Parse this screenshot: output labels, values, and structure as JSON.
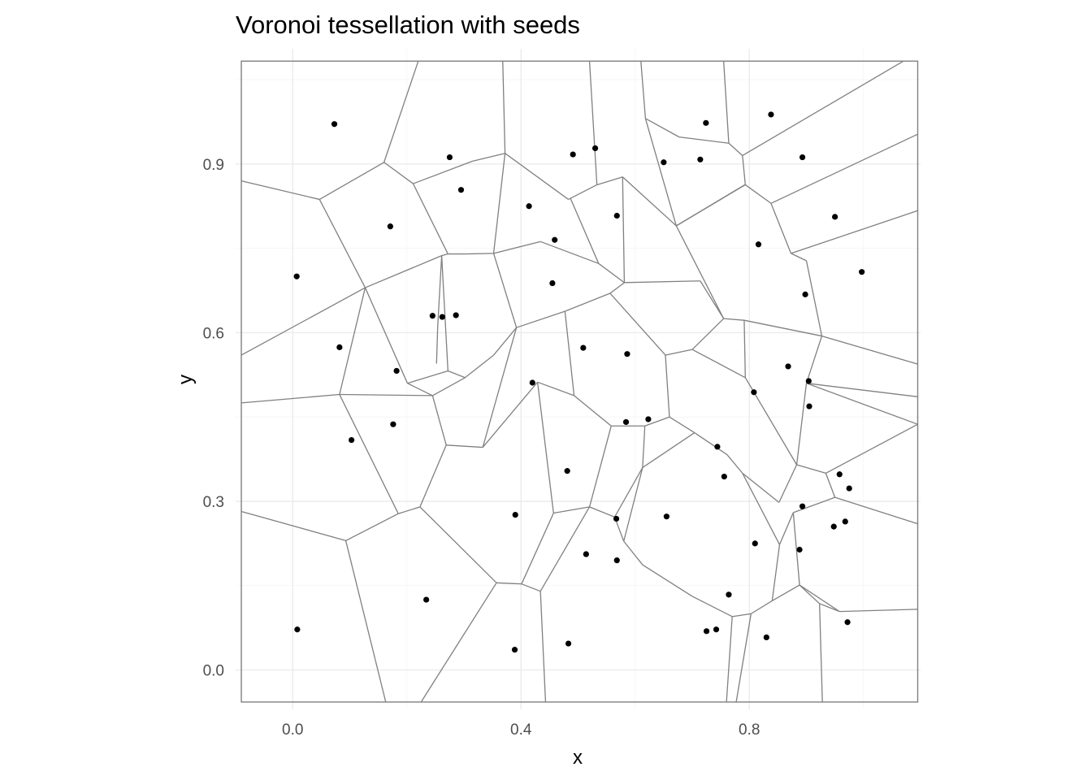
{
  "chart_data": {
    "type": "scatter",
    "title": "Voronoi tessellation with seeds",
    "xlabel": "x",
    "ylabel": "y",
    "xlim": [
      -0.1,
      1.1
    ],
    "ylim": [
      -0.07,
      1.105
    ],
    "grid": true,
    "x_ticks": [
      {
        "value": 0.0,
        "label": "0.0"
      },
      {
        "value": 0.4,
        "label": "0.4"
      },
      {
        "value": 0.8,
        "label": "0.8"
      }
    ],
    "y_ticks": [
      {
        "value": 0.0,
        "label": "0.0"
      },
      {
        "value": 0.3,
        "label": "0.3"
      },
      {
        "value": 0.6,
        "label": "0.6"
      },
      {
        "value": 0.9,
        "label": "0.9"
      }
    ],
    "bounding_box": {
      "xmin": -0.09,
      "xmax": 1.095,
      "ymin": -0.057,
      "ymax": 1.083
    },
    "seeds": [
      [
        0.073,
        0.971
      ],
      [
        0.007,
        0.7
      ],
      [
        0.171,
        0.789
      ],
      [
        0.275,
        0.912
      ],
      [
        0.295,
        0.854
      ],
      [
        0.414,
        0.825
      ],
      [
        0.491,
        0.917
      ],
      [
        0.53,
        0.928
      ],
      [
        0.65,
        0.903
      ],
      [
        0.724,
        0.973
      ],
      [
        0.838,
        0.988
      ],
      [
        0.893,
        0.912
      ],
      [
        0.714,
        0.908
      ],
      [
        0.568,
        0.808
      ],
      [
        0.459,
        0.765
      ],
      [
        0.455,
        0.688
      ],
      [
        0.245,
        0.63
      ],
      [
        0.262,
        0.628
      ],
      [
        0.286,
        0.631
      ],
      [
        0.082,
        0.574
      ],
      [
        0.182,
        0.532
      ],
      [
        0.176,
        0.437
      ],
      [
        0.103,
        0.409
      ],
      [
        0.42,
        0.511
      ],
      [
        0.509,
        0.573
      ],
      [
        0.586,
        0.562
      ],
      [
        0.584,
        0.441
      ],
      [
        0.623,
        0.446
      ],
      [
        0.481,
        0.354
      ],
      [
        0.39,
        0.276
      ],
      [
        0.234,
        0.125
      ],
      [
        0.008,
        0.072
      ],
      [
        0.389,
        0.036
      ],
      [
        0.483,
        0.047
      ],
      [
        0.514,
        0.206
      ],
      [
        0.567,
        0.269
      ],
      [
        0.568,
        0.195
      ],
      [
        0.655,
        0.273
      ],
      [
        0.744,
        0.397
      ],
      [
        0.756,
        0.344
      ],
      [
        0.808,
        0.494
      ],
      [
        0.868,
        0.54
      ],
      [
        0.904,
        0.514
      ],
      [
        0.905,
        0.469
      ],
      [
        0.898,
        0.668
      ],
      [
        0.816,
        0.757
      ],
      [
        0.95,
        0.806
      ],
      [
        0.997,
        0.708
      ],
      [
        0.958,
        0.348
      ],
      [
        0.975,
        0.323
      ],
      [
        0.893,
        0.291
      ],
      [
        0.968,
        0.264
      ],
      [
        0.948,
        0.255
      ],
      [
        0.888,
        0.214
      ],
      [
        0.81,
        0.225
      ],
      [
        0.764,
        0.134
      ],
      [
        0.725,
        0.069
      ],
      [
        0.742,
        0.072
      ],
      [
        0.83,
        0.058
      ],
      [
        0.972,
        0.085
      ]
    ],
    "edges": [
      [
        -0.09,
        0.87,
        0.047,
        0.837
      ],
      [
        0.047,
        0.837,
        0.16,
        0.903
      ],
      [
        0.16,
        0.903,
        0.211,
        0.865
      ],
      [
        0.211,
        0.865,
        0.315,
        0.905
      ],
      [
        0.315,
        0.905,
        0.372,
        0.919
      ],
      [
        0.16,
        0.903,
        0.22,
        1.083
      ],
      [
        0.372,
        0.919,
        0.368,
        1.083
      ],
      [
        0.211,
        0.865,
        0.272,
        0.74
      ],
      [
        0.047,
        0.837,
        0.127,
        0.68
      ],
      [
        0.127,
        0.68,
        0.261,
        0.737
      ],
      [
        0.261,
        0.737,
        0.272,
        0.74
      ],
      [
        0.272,
        0.74,
        0.302,
        0.74
      ],
      [
        0.302,
        0.74,
        0.352,
        0.741
      ],
      [
        0.352,
        0.741,
        0.372,
        0.919
      ],
      [
        0.372,
        0.919,
        0.483,
        0.837
      ],
      [
        0.483,
        0.837,
        0.533,
        0.863
      ],
      [
        0.533,
        0.863,
        0.578,
        0.877
      ],
      [
        0.578,
        0.877,
        0.672,
        0.79
      ],
      [
        0.672,
        0.79,
        0.618,
        0.981
      ],
      [
        0.618,
        0.981,
        0.61,
        1.083
      ],
      [
        0.618,
        0.981,
        0.677,
        0.948
      ],
      [
        0.677,
        0.948,
        0.764,
        0.937
      ],
      [
        0.764,
        0.937,
        0.788,
        0.915
      ],
      [
        0.764,
        0.937,
        0.755,
        1.083
      ],
      [
        0.788,
        0.915,
        1.07,
        1.083
      ],
      [
        0.788,
        0.915,
        0.793,
        0.863
      ],
      [
        0.793,
        0.863,
        0.838,
        0.83
      ],
      [
        0.838,
        0.83,
        1.095,
        0.953
      ],
      [
        0.838,
        0.83,
        0.873,
        0.741
      ],
      [
        0.873,
        0.741,
        1.095,
        0.817
      ],
      [
        0.873,
        0.741,
        0.9,
        0.728
      ],
      [
        0.9,
        0.728,
        0.927,
        0.594
      ],
      [
        0.927,
        0.594,
        1.095,
        0.544
      ],
      [
        0.927,
        0.594,
        0.791,
        0.622
      ],
      [
        0.791,
        0.622,
        0.755,
        0.625
      ],
      [
        0.755,
        0.625,
        0.672,
        0.79
      ],
      [
        0.672,
        0.79,
        0.792,
        0.863
      ],
      [
        0.793,
        0.863,
        0.672,
        0.79
      ],
      [
        0.755,
        0.625,
        0.714,
        0.692
      ],
      [
        0.714,
        0.692,
        0.581,
        0.689
      ],
      [
        0.581,
        0.689,
        0.536,
        0.723
      ],
      [
        0.536,
        0.723,
        0.487,
        0.838
      ],
      [
        0.536,
        0.723,
        0.434,
        0.762
      ],
      [
        0.434,
        0.762,
        0.352,
        0.741
      ],
      [
        0.533,
        0.863,
        0.52,
        1.083
      ],
      [
        0.578,
        0.877,
        0.581,
        0.689
      ],
      [
        0.581,
        0.689,
        0.556,
        0.67
      ],
      [
        0.556,
        0.67,
        0.477,
        0.638
      ],
      [
        0.477,
        0.638,
        0.392,
        0.609
      ],
      [
        0.392,
        0.609,
        0.352,
        0.741
      ],
      [
        0.261,
        0.737,
        0.254,
        0.61
      ],
      [
        0.254,
        0.61,
        0.252,
        0.545
      ],
      [
        0.261,
        0.737,
        0.272,
        0.532
      ],
      [
        0.272,
        0.532,
        0.302,
        0.52
      ],
      [
        0.302,
        0.52,
        0.352,
        0.56
      ],
      [
        0.352,
        0.56,
        0.392,
        0.609
      ],
      [
        0.272,
        0.532,
        0.201,
        0.51
      ],
      [
        0.201,
        0.51,
        0.127,
        0.68
      ],
      [
        0.127,
        0.68,
        -0.09,
        0.56
      ],
      [
        0.201,
        0.51,
        0.245,
        0.488
      ],
      [
        0.245,
        0.488,
        0.302,
        0.52
      ],
      [
        0.245,
        0.488,
        0.082,
        0.49
      ],
      [
        0.082,
        0.49,
        0.127,
        0.68
      ],
      [
        0.082,
        0.49,
        -0.09,
        0.475
      ],
      [
        0.082,
        0.49,
        0.185,
        0.278
      ],
      [
        0.245,
        0.488,
        0.269,
        0.4
      ],
      [
        0.269,
        0.4,
        0.333,
        0.396
      ],
      [
        0.333,
        0.396,
        0.392,
        0.609
      ],
      [
        0.269,
        0.4,
        0.223,
        0.29
      ],
      [
        0.223,
        0.29,
        0.185,
        0.278
      ],
      [
        0.185,
        0.278,
        0.093,
        0.23
      ],
      [
        0.093,
        0.23,
        -0.09,
        0.282
      ],
      [
        0.093,
        0.23,
        0.163,
        -0.057
      ],
      [
        0.223,
        0.29,
        0.357,
        0.155
      ],
      [
        0.357,
        0.155,
        0.225,
        -0.057
      ],
      [
        0.357,
        0.155,
        0.401,
        0.153
      ],
      [
        0.401,
        0.153,
        0.434,
        0.14
      ],
      [
        0.434,
        0.14,
        0.443,
        -0.057
      ],
      [
        0.401,
        0.153,
        0.457,
        0.279
      ],
      [
        0.457,
        0.279,
        0.52,
        0.29
      ],
      [
        0.52,
        0.29,
        0.564,
        0.272
      ],
      [
        0.564,
        0.272,
        0.58,
        0.229
      ],
      [
        0.58,
        0.229,
        0.613,
        0.187
      ],
      [
        0.613,
        0.187,
        0.7,
        0.131
      ],
      [
        0.7,
        0.131,
        0.77,
        0.095
      ],
      [
        0.77,
        0.095,
        0.803,
        0.1
      ],
      [
        0.803,
        0.1,
        0.84,
        0.123
      ],
      [
        0.84,
        0.123,
        0.888,
        0.151
      ],
      [
        0.888,
        0.151,
        0.923,
        0.118
      ],
      [
        0.923,
        0.118,
        0.958,
        0.104
      ],
      [
        0.958,
        0.104,
        1.095,
        0.108
      ],
      [
        0.923,
        0.118,
        0.928,
        -0.057
      ],
      [
        0.77,
        0.095,
        0.76,
        -0.057
      ],
      [
        0.803,
        0.1,
        0.777,
        -0.057
      ],
      [
        0.888,
        0.151,
        0.877,
        0.28
      ],
      [
        0.877,
        0.28,
        0.95,
        0.307
      ],
      [
        0.95,
        0.307,
        0.934,
        0.35
      ],
      [
        0.934,
        0.35,
        0.883,
        0.365
      ],
      [
        0.883,
        0.365,
        0.852,
        0.298
      ],
      [
        0.852,
        0.298,
        0.788,
        0.35
      ],
      [
        0.788,
        0.35,
        0.761,
        0.383
      ],
      [
        0.761,
        0.383,
        0.704,
        0.422
      ],
      [
        0.704,
        0.422,
        0.66,
        0.45
      ],
      [
        0.66,
        0.45,
        0.653,
        0.56
      ],
      [
        0.653,
        0.56,
        0.7,
        0.57
      ],
      [
        0.7,
        0.57,
        0.755,
        0.625
      ],
      [
        0.7,
        0.57,
        0.793,
        0.52
      ],
      [
        0.793,
        0.52,
        0.883,
        0.365
      ],
      [
        0.793,
        0.52,
        0.791,
        0.622
      ],
      [
        0.883,
        0.365,
        0.9,
        0.51
      ],
      [
        0.9,
        0.51,
        0.927,
        0.594
      ],
      [
        0.9,
        0.51,
        1.095,
        0.486
      ],
      [
        0.9,
        0.51,
        1.095,
        0.437
      ],
      [
        0.934,
        0.35,
        1.095,
        0.437
      ],
      [
        0.95,
        0.307,
        1.095,
        0.26
      ],
      [
        0.958,
        0.104,
        0.888,
        0.151
      ],
      [
        0.877,
        0.28,
        0.853,
        0.223
      ],
      [
        0.853,
        0.223,
        0.84,
        0.123
      ],
      [
        0.853,
        0.223,
        0.788,
        0.35
      ],
      [
        0.66,
        0.45,
        0.617,
        0.434
      ],
      [
        0.617,
        0.434,
        0.558,
        0.434
      ],
      [
        0.558,
        0.434,
        0.52,
        0.29
      ],
      [
        0.617,
        0.434,
        0.613,
        0.36
      ],
      [
        0.613,
        0.36,
        0.58,
        0.229
      ],
      [
        0.613,
        0.36,
        0.704,
        0.422
      ],
      [
        0.558,
        0.434,
        0.493,
        0.488
      ],
      [
        0.493,
        0.488,
        0.477,
        0.638
      ],
      [
        0.493,
        0.488,
        0.429,
        0.512
      ],
      [
        0.429,
        0.512,
        0.333,
        0.396
      ],
      [
        0.429,
        0.512,
        0.457,
        0.279
      ],
      [
        0.653,
        0.56,
        0.556,
        0.67
      ],
      [
        0.564,
        0.272,
        0.613,
        0.36
      ],
      [
        0.434,
        0.14,
        0.52,
        0.29
      ]
    ]
  }
}
